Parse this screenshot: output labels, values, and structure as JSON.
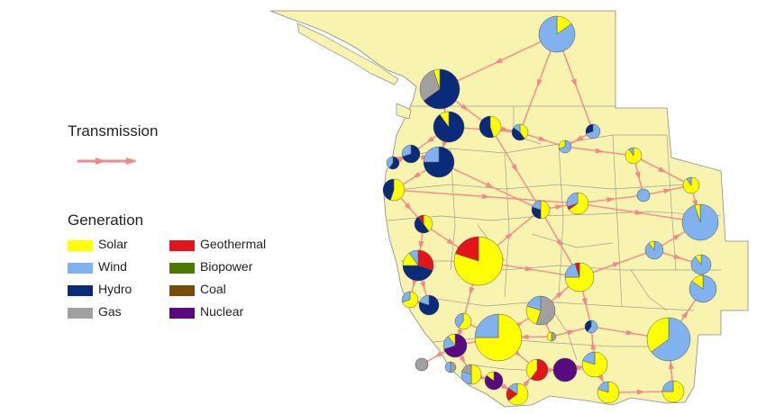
{
  "legend": {
    "transmission_title": "Transmission",
    "generation_title": "Generation",
    "items": [
      {
        "label": "Solar",
        "color": "#ffff00"
      },
      {
        "label": "Wind",
        "color": "#7fb2ee"
      },
      {
        "label": "Hydro",
        "color": "#0a2a7a"
      },
      {
        "label": "Gas",
        "color": "#a0a0a0"
      },
      {
        "label": "Geothermal",
        "color": "#e3151a"
      },
      {
        "label": "Biopower",
        "color": "#4a7a00"
      },
      {
        "label": "Coal",
        "color": "#7a4a08"
      },
      {
        "label": "Nuclear",
        "color": "#5a0a80"
      }
    ]
  },
  "colors": {
    "land": "#f8f4b0",
    "border": "#8a8a8a",
    "transmission": "#f08a8a",
    "ocean": "#ffffff"
  },
  "generation_nodes": [
    {
      "r": 20,
      "shares": {
        "Solar": 0.15,
        "Wind": 0.85
      }
    },
    {
      "r": 22,
      "shares": {
        "Hydro": 0.65,
        "Gas": 0.3,
        "Solar": 0.05
      }
    },
    {
      "r": 17,
      "shares": {
        "Hydro": 0.9,
        "Solar": 0.1
      }
    },
    {
      "r": 12,
      "shares": {
        "Solar": 0.45,
        "Hydro": 0.55
      }
    },
    {
      "r": 9,
      "shares": {
        "Solar": 0.4,
        "Hydro": 0.45,
        "Wind": 0.15
      }
    },
    {
      "r": 8,
      "shares": {
        "Wind": 0.7,
        "Hydro": 0.3
      }
    },
    {
      "r": 7,
      "shares": {
        "Wind": 0.7,
        "Solar": 0.3
      }
    },
    {
      "r": 9,
      "shares": {
        "Solar": 0.9,
        "Wind": 0.1
      }
    },
    {
      "r": 7,
      "shares": {
        "Hydro": 0.6,
        "Wind": 0.4
      }
    },
    {
      "r": 10,
      "shares": {
        "Hydro": 0.7,
        "Wind": 0.3
      }
    },
    {
      "r": 17,
      "shares": {
        "Hydro": 0.75,
        "Wind": 0.25
      }
    },
    {
      "r": 12,
      "shares": {
        "Solar": 0.55,
        "Hydro": 0.45
      }
    },
    {
      "r": 10,
      "shares": {
        "Solar": 0.5,
        "Hydro": 0.3,
        "Wind": 0.2
      }
    },
    {
      "r": 12,
      "shares": {
        "Solar": 0.65,
        "Geothermal": 0.05,
        "Wind": 0.3
      }
    },
    {
      "r": 10,
      "shares": {
        "Solar": 0.4,
        "Hydro": 0.5,
        "Geothermal": 0.1
      }
    },
    {
      "r": 7,
      "shares": {
        "Wind": 1.0
      }
    },
    {
      "r": 9,
      "shares": {
        "Solar": 0.9,
        "Wind": 0.1
      }
    },
    {
      "r": 20,
      "shares": {
        "Wind": 0.95,
        "Solar": 0.05
      }
    },
    {
      "r": 27,
      "shares": {
        "Solar": 0.8,
        "Geothermal": 0.2
      }
    },
    {
      "r": 17,
      "shares": {
        "Geothermal": 0.3,
        "Hydro": 0.45,
        "Solar": 0.15,
        "Wind": 0.1
      }
    },
    {
      "r": 16,
      "shares": {
        "Solar": 0.75,
        "Wind": 0.2,
        "Geothermal": 0.05
      }
    },
    {
      "r": 10,
      "shares": {
        "Wind": 0.9,
        "Solar": 0.1
      }
    },
    {
      "r": 11,
      "shares": {
        "Wind": 0.9,
        "Solar": 0.1
      }
    },
    {
      "r": 15,
      "shares": {
        "Wind": 0.85,
        "Solar": 0.15
      }
    },
    {
      "r": 11,
      "shares": {
        "Hydro": 0.8,
        "Wind": 0.2
      }
    },
    {
      "r": 16,
      "shares": {
        "Gas": 0.55,
        "Solar": 0.25,
        "Wind": 0.2
      }
    },
    {
      "r": 9,
      "shares": {
        "Solar": 0.6,
        "Wind": 0.4
      }
    },
    {
      "r": 26,
      "shares": {
        "Solar": 0.75,
        "Wind": 0.25
      }
    },
    {
      "r": 24,
      "shares": {
        "Wind": 0.65,
        "Solar": 0.35
      }
    },
    {
      "r": 7,
      "shares": {
        "Wind": 0.6,
        "Hydro": 0.4
      }
    },
    {
      "r": 9,
      "shares": {
        "Solar": 0.7,
        "Wind": 0.3
      }
    },
    {
      "r": 13,
      "shares": {
        "Nuclear": 0.7,
        "Wind": 0.2,
        "Solar": 0.1
      }
    },
    {
      "r": 7,
      "shares": {
        "Gas": 1.0
      }
    },
    {
      "r": 11,
      "shares": {
        "Solar": 0.5,
        "Wind": 0.3,
        "Gas": 0.2
      }
    },
    {
      "r": 10,
      "shares": {
        "Nuclear": 0.85,
        "Solar": 0.15
      }
    },
    {
      "r": 12,
      "shares": {
        "Solar": 0.65,
        "Geothermal": 0.2,
        "Wind": 0.15
      }
    },
    {
      "r": 12,
      "shares": {
        "Geothermal": 0.6,
        "Solar": 0.4
      }
    },
    {
      "r": 13,
      "shares": {
        "Nuclear": 1.0
      }
    },
    {
      "r": 14,
      "shares": {
        "Solar": 0.8,
        "Wind": 0.2
      }
    },
    {
      "r": 12,
      "shares": {
        "Solar": 0.8,
        "Wind": 0.2
      }
    },
    {
      "r": 12,
      "shares": {
        "Solar": 0.75,
        "Wind": 0.25
      }
    },
    {
      "r": 5,
      "shares": {
        "Gas": 0.5,
        "Solar": 0.5
      }
    },
    {
      "r": 6,
      "shares": {
        "Gas": 0.5,
        "Wind": 0.5
      }
    }
  ]
}
